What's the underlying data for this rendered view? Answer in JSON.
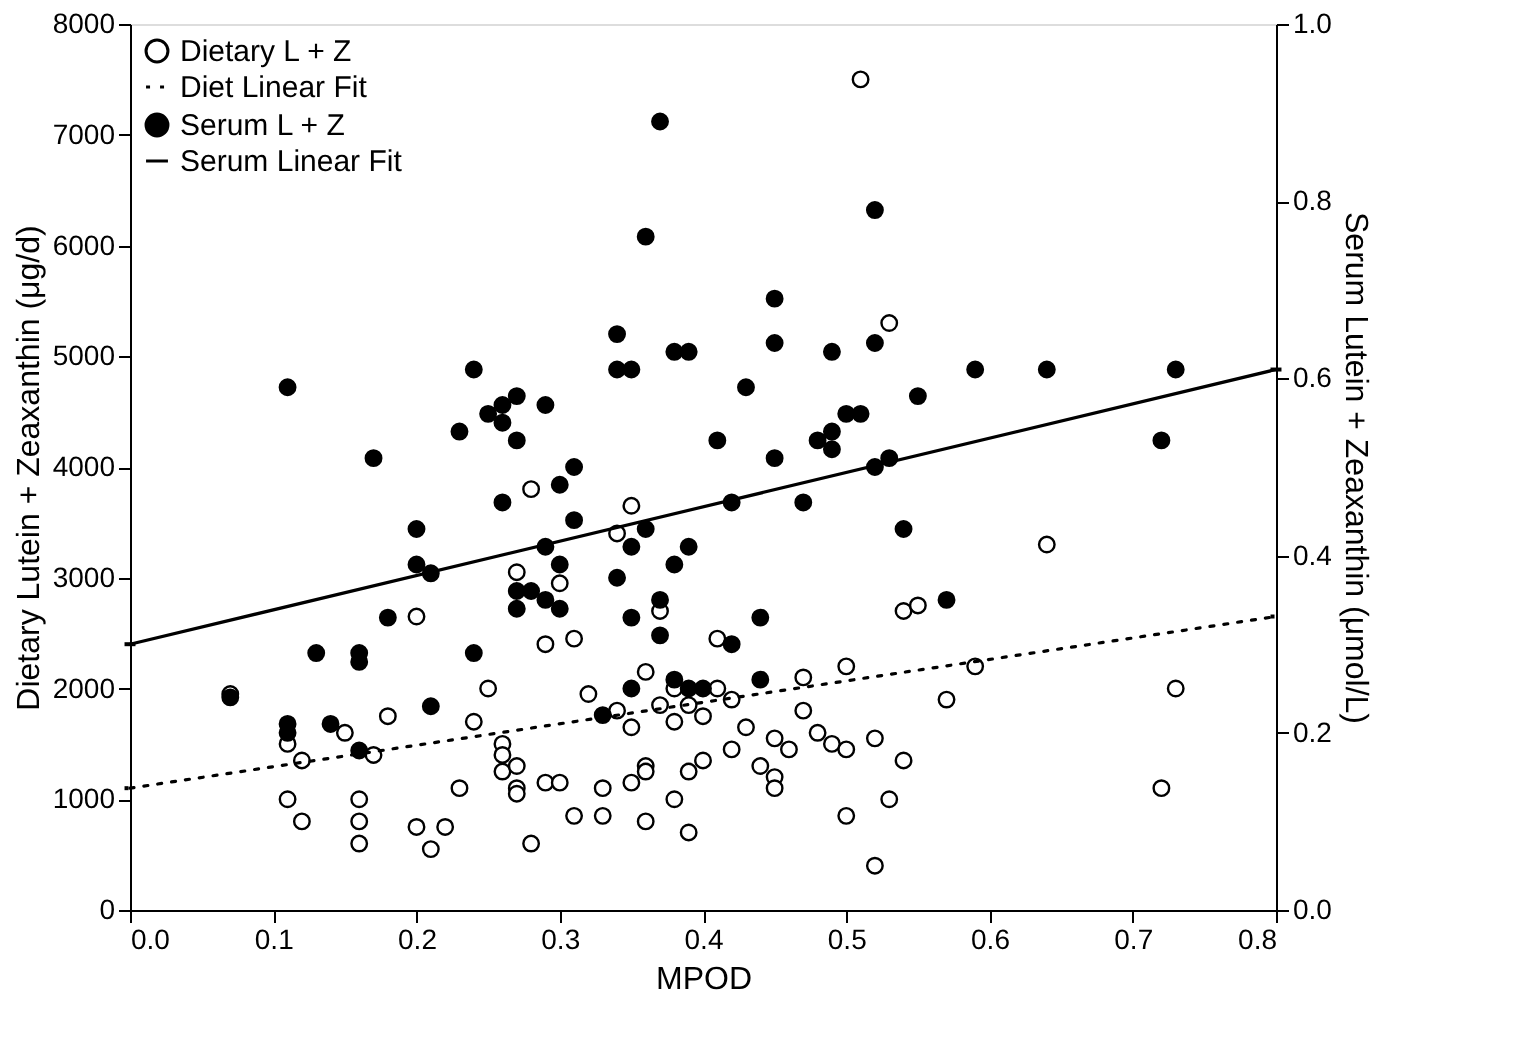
{
  "chart_data": {
    "type": "scatter",
    "xlabel": "MPOD",
    "ylabel": "Dietary Lutein + Zeaxanthin (μg/d)",
    "y2label": "Serum Lutein + Zeaxanthin (μmol/L)",
    "xlim": [
      0,
      0.8
    ],
    "xticks": [
      {
        "value": 0,
        "label": "0.0"
      },
      0.1,
      0.2,
      0.3,
      0.4,
      0.5,
      0.6,
      0.7,
      0.8
    ],
    "ylim": [
      0,
      8000
    ],
    "yticks": [
      0,
      1000,
      2000,
      3000,
      4000,
      5000,
      6000,
      7000,
      8000
    ],
    "y2lim": [
      0,
      1
    ],
    "y2ticks": [
      {
        "value": 0,
        "label": "0.0"
      },
      0.2,
      0.4,
      0.6,
      0.8,
      {
        "value": 1,
        "label": "1.0"
      }
    ],
    "grid": false,
    "legend": "top left",
    "series": [
      {
        "name": "Dietary L + Z",
        "marker": "circle",
        "color": "#ffffff",
        "x": [
          0.07,
          0.11,
          0.11,
          0.12,
          0.12,
          0.15,
          0.16,
          0.16,
          0.16,
          0.17,
          0.18,
          0.2,
          0.2,
          0.21,
          0.22,
          0.23,
          0.24,
          0.25,
          0.26,
          0.26,
          0.26,
          0.27,
          0.27,
          0.27,
          0.27,
          0.28,
          0.28,
          0.29,
          0.29,
          0.3,
          0.3,
          0.31,
          0.31,
          0.32,
          0.33,
          0.33,
          0.34,
          0.34,
          0.35,
          0.35,
          0.35,
          0.36,
          0.36,
          0.36,
          0.36,
          0.37,
          0.37,
          0.38,
          0.38,
          0.38,
          0.39,
          0.39,
          0.39,
          0.4,
          0.4,
          0.41,
          0.41,
          0.42,
          0.42,
          0.43,
          0.44,
          0.45,
          0.45,
          0.45,
          0.46,
          0.47,
          0.47,
          0.48,
          0.49,
          0.5,
          0.5,
          0.5,
          0.51,
          0.52,
          0.52,
          0.53,
          0.53,
          0.54,
          0.54,
          0.55,
          0.57,
          0.59,
          0.64,
          0.72,
          0.73
        ],
        "values": [
          1950,
          1500,
          1000,
          1350,
          800,
          1600,
          1000,
          800,
          600,
          1400,
          1750,
          2650,
          750,
          550,
          750,
          1100,
          1700,
          2000,
          1500,
          1400,
          1250,
          1300,
          1100,
          1050,
          3050,
          600,
          3800,
          2400,
          1150,
          1150,
          2950,
          850,
          2450,
          1950,
          1100,
          850,
          1800,
          3400,
          3650,
          1650,
          1150,
          1300,
          1250,
          2150,
          800,
          2700,
          1850,
          1700,
          1000,
          2000,
          1850,
          1250,
          700,
          1750,
          1350,
          2000,
          2450,
          1900,
          1450,
          1650,
          1300,
          1200,
          1100,
          1550,
          1450,
          1800,
          2100,
          1600,
          1500,
          1450,
          850,
          2200,
          7500,
          1550,
          400,
          1000,
          5300,
          2700,
          1350,
          2750,
          1900,
          2200,
          3300,
          1100,
          2000
        ]
      },
      {
        "name": "Diet Linear Fit",
        "type": "line",
        "line_style": "dotted",
        "color": "#000000",
        "x": [
          0,
          0.8
        ],
        "values": [
          1100,
          2650
        ]
      },
      {
        "name": "Serum L + Z",
        "marker": "circle",
        "axis": "y2",
        "color": "#000000",
        "x": [
          0.07,
          0.11,
          0.11,
          0.11,
          0.13,
          0.14,
          0.16,
          0.16,
          0.16,
          0.17,
          0.18,
          0.2,
          0.2,
          0.21,
          0.21,
          0.23,
          0.24,
          0.24,
          0.25,
          0.26,
          0.26,
          0.27,
          0.27,
          0.26,
          0.27,
          0.27,
          0.28,
          0.29,
          0.3,
          0.29,
          0.3,
          0.3,
          0.31,
          0.31,
          0.29,
          0.33,
          0.34,
          0.34,
          0.34,
          0.35,
          0.35,
          0.35,
          0.35,
          0.36,
          0.36,
          0.37,
          0.37,
          0.37,
          0.38,
          0.38,
          0.38,
          0.39,
          0.39,
          0.39,
          0.4,
          0.41,
          0.42,
          0.42,
          0.43,
          0.44,
          0.44,
          0.45,
          0.45,
          0.45,
          0.47,
          0.48,
          0.49,
          0.49,
          0.49,
          0.5,
          0.51,
          0.52,
          0.52,
          0.53,
          0.52,
          0.54,
          0.55,
          0.57,
          0.59,
          0.64,
          0.72,
          0.73
        ],
        "values": [
          0.24,
          0.59,
          0.21,
          0.2,
          0.29,
          0.21,
          0.29,
          0.28,
          0.18,
          0.51,
          0.33,
          0.43,
          0.39,
          0.38,
          0.23,
          0.54,
          0.61,
          0.29,
          0.56,
          0.57,
          0.55,
          0.58,
          0.53,
          0.46,
          0.36,
          0.34,
          0.36,
          0.35,
          0.34,
          0.41,
          0.39,
          0.48,
          0.5,
          0.44,
          0.57,
          0.22,
          0.65,
          0.61,
          0.375,
          0.61,
          0.33,
          0.41,
          0.25,
          0.76,
          0.43,
          0.89,
          0.35,
          0.31,
          0.63,
          0.39,
          0.26,
          0.63,
          0.41,
          0.25,
          0.25,
          0.53,
          0.46,
          0.3,
          0.59,
          0.33,
          0.26,
          0.69,
          0.64,
          0.51,
          0.46,
          0.53,
          0.63,
          0.52,
          0.54,
          0.56,
          0.56,
          0.79,
          0.64,
          0.51,
          0.5,
          0.43,
          0.58,
          0.35,
          0.61,
          0.61,
          0.53,
          0.61
        ]
      },
      {
        "name": "Serum Linear Fit",
        "type": "line",
        "line_style": "solid",
        "axis": "y2",
        "color": "#000000",
        "x": [
          0,
          0.8
        ],
        "values": [
          0.3,
          0.61
        ]
      }
    ]
  }
}
